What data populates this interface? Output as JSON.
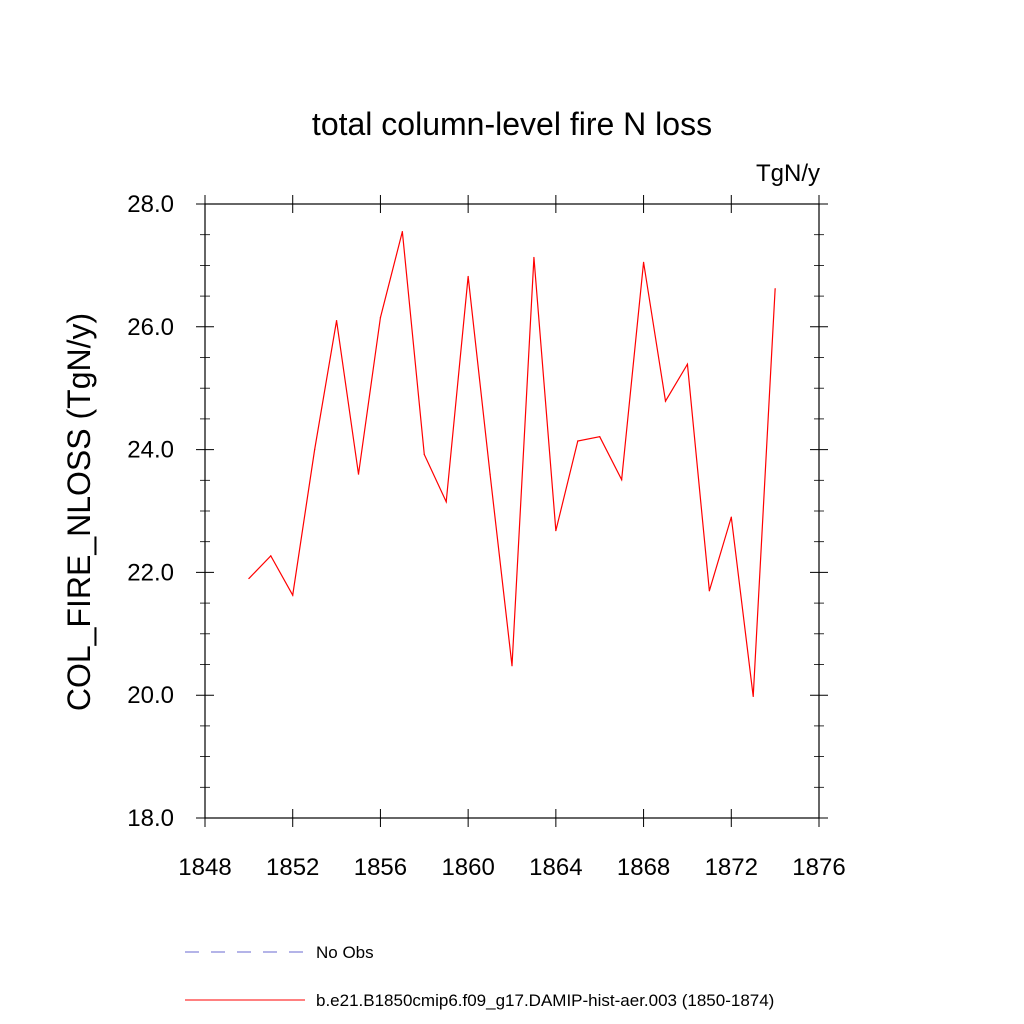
{
  "chart_data": {
    "type": "line",
    "title": "total column-level fire N loss",
    "units_label": "TgN/y",
    "ylabel": "COL_FIRE_NLOSS  (TgN/y)",
    "xlabel": "",
    "xlim": [
      1848,
      1876
    ],
    "ylim": [
      18.0,
      28.0
    ],
    "x_ticks": [
      1848,
      1852,
      1856,
      1860,
      1864,
      1868,
      1872,
      1876
    ],
    "x_tick_labels": [
      "1848",
      "1852",
      "1856",
      "1860",
      "1864",
      "1868",
      "1872",
      "1876"
    ],
    "y_ticks": [
      18.0,
      20.0,
      22.0,
      24.0,
      26.0,
      28.0
    ],
    "y_tick_labels": [
      "18.0",
      "20.0",
      "22.0",
      "24.0",
      "26.0",
      "28.0"
    ],
    "grid": false,
    "legend_placement": "bottom",
    "series": [
      {
        "name": "b.e21.B1850cmip6.f09_g17.DAMIP-hist-aer.003 (1850-1874)",
        "color": "#ff0000",
        "style": "solid",
        "x": [
          1850,
          1851,
          1852,
          1853,
          1854,
          1855,
          1856,
          1857,
          1858,
          1859,
          1860,
          1861,
          1862,
          1863,
          1864,
          1865,
          1866,
          1867,
          1868,
          1869,
          1870,
          1871,
          1872,
          1873,
          1874
        ],
        "values": [
          21.9,
          22.27,
          21.63,
          24.0,
          26.1,
          23.6,
          26.15,
          27.55,
          23.92,
          23.15,
          26.82,
          23.6,
          20.48,
          27.13,
          22.68,
          24.14,
          24.21,
          23.51,
          27.05,
          24.79,
          25.39,
          21.7,
          22.9,
          19.98,
          26.62
        ]
      },
      {
        "name": "No Obs",
        "color": "#6a6ad0",
        "style": "dashed",
        "x": [],
        "values": []
      }
    ]
  }
}
